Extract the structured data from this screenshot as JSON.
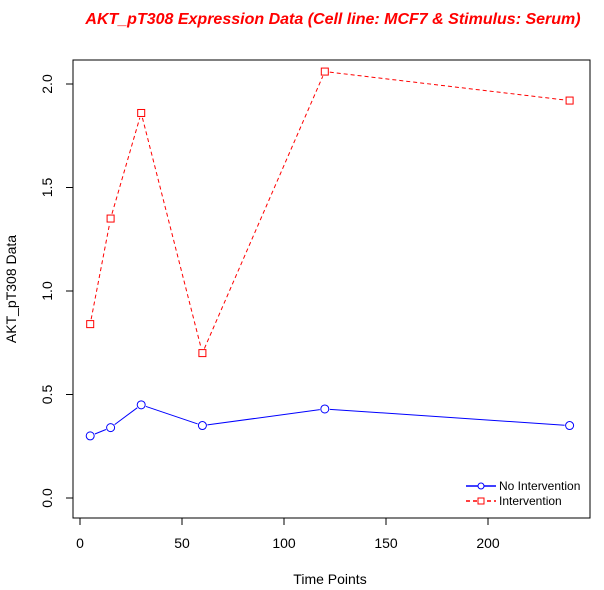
{
  "chart_data": {
    "type": "line",
    "title": "AKT_pT308 Expression Data (Cell line: MCF7 & Stimulus: Serum)",
    "xlabel": "Time Points",
    "ylabel": "AKT_pT308 Data",
    "xlim": [
      0,
      240
    ],
    "ylim": [
      0.0,
      2.0
    ],
    "x_ticks": [
      "0",
      "50",
      "100",
      "150",
      "200"
    ],
    "y_ticks": [
      "0.0",
      "0.5",
      "1.0",
      "1.5",
      "2.0"
    ],
    "legend_position": "bottom-right",
    "series": [
      {
        "name": "No Intervention",
        "color": "#0000ff",
        "marker": "circle",
        "line_style": "solid",
        "x": [
          5,
          15,
          30,
          60,
          120,
          240
        ],
        "y": [
          0.3,
          0.34,
          0.45,
          0.35,
          0.43,
          0.35
        ]
      },
      {
        "name": "Intervention",
        "color": "#ff0000",
        "marker": "square",
        "line_style": "dashed",
        "x": [
          5,
          15,
          30,
          60,
          120,
          240
        ],
        "y": [
          0.84,
          1.35,
          1.86,
          0.7,
          2.06,
          1.92
        ]
      }
    ]
  }
}
